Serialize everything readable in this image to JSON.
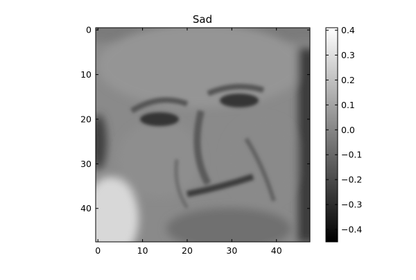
{
  "chart_data": {
    "type": "heatmap",
    "title": "Sad",
    "xlabel": "",
    "ylabel": "",
    "xlim": [
      -0.5,
      47.5
    ],
    "ylim": [
      47.5,
      -0.5
    ],
    "x_ticks": [
      0,
      10,
      20,
      30,
      40
    ],
    "y_ticks": [
      0,
      10,
      20,
      30,
      40
    ],
    "x_tick_labels": [
      "0",
      "10",
      "20",
      "30",
      "40"
    ],
    "y_tick_labels": [
      "0",
      "10",
      "20",
      "30",
      "40"
    ],
    "grid": false,
    "colormap": "gray",
    "color_range": [
      -0.45,
      0.41
    ],
    "colorbar_ticks": [
      0.4,
      0.3,
      0.2,
      0.1,
      0.0,
      -0.1,
      -0.2,
      -0.3,
      -0.4
    ],
    "colorbar_tick_labels": [
      "0.4",
      "0.3",
      "0.2",
      "0.1",
      "0.0",
      "−0.1",
      "−0.2",
      "−0.3",
      "−0.4"
    ],
    "image_size": [
      48,
      48
    ],
    "image_content": "grayscale photograph of an elderly man's face with a sad expression"
  }
}
